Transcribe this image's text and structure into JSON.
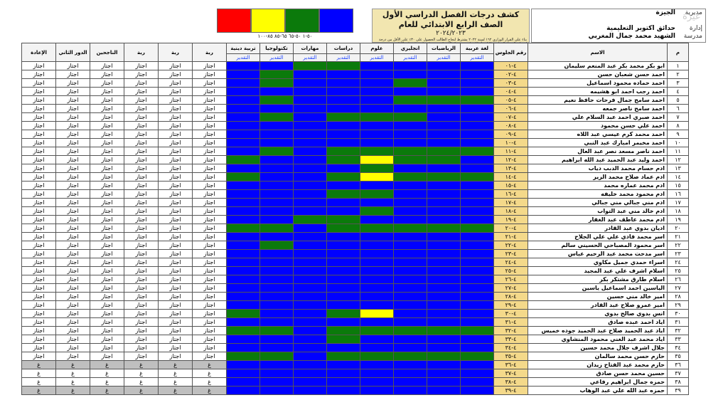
{
  "header": {
    "title_line1": "كشف درجات الفصل الدراسي الأول الصف الرابع الابتدائي للعام",
    "title_line2": "٢٠٢٤/٢٠٢٣",
    "note": "بناء على القرار الوزاري ١٦٢ لسنة ٢٠٢٢ يشترط لنجاح الطالب الحصول على ٣٠٪ على الأقل من درجة امتحان الفصل الدراسي الثاني أو كل مادة من مواد الامتحان وحصوله على ٣٠٪ على الأقل من مجموع درجات كل مادة من مواد الامتحان",
    "scale": "٥٠-١ ٥٠-٦٥ ٦٥-٨٥ ٨٥-١٠٠",
    "swatch_colors": [
      "#ff0000",
      "#ffff00",
      "#0b7a0b",
      "#0000ff"
    ],
    "school_rows": [
      {
        "label": "مديرية",
        "value": "الجيزة"
      },
      {
        "label": "",
        "value": ""
      },
      {
        "label": "إدارة",
        "value": "حدائق أكتوبر التعليمية"
      },
      {
        "label": "مدرسة",
        "value": "الشهيد محمد جمال المغربي"
      }
    ],
    "watermark": "غيرة"
  },
  "columns": {
    "num": "م",
    "name": "الاسم",
    "seat": "رقم الجلوس",
    "subjects": [
      "لغة عربية",
      "الرياضيات",
      "انجليزي",
      "علوم",
      "دراسات",
      "مهارات",
      "تكنولوجيا",
      "تربية دينية"
    ],
    "sub_label": "التقدير",
    "results": [
      "ربة",
      "ربة",
      "ربة",
      "الناجحين",
      "الدور الثاني",
      "الإعادة"
    ]
  },
  "students": [
    {
      "n": "١",
      "name": "ابو بكر محمد بكر عبد المنعم سليمان",
      "seat": "٤-٠١",
      "g": "BBBBGGBB",
      "r": "اجتاز"
    },
    {
      "n": "٢",
      "name": "احمد حسن شعبان حسن",
      "seat": "٤-٠٢",
      "g": "BBBBBBGB",
      "r": "اجتاز"
    },
    {
      "n": "٣",
      "name": "احمد حماده محمود اسماعيل",
      "seat": "٤-٠٣",
      "g": "BBGBBBGB",
      "r": "اجتاز"
    },
    {
      "n": "٤",
      "name": "احمد رجب احمد ابو هشيمه",
      "seat": "٤-٠٤",
      "g": "BBBBBBBB",
      "r": "اجتاز"
    },
    {
      "n": "٥",
      "name": "احمد سامح جمال فرحات حافظ نعيم",
      "seat": "٤-٠٥",
      "g": "GGGBBBGB",
      "r": "اجتاز"
    },
    {
      "n": "٦",
      "name": "احمد سامح ناصر جمعه",
      "seat": "٤-٠٦",
      "g": "BBBBBBBB",
      "r": "اجتاز"
    },
    {
      "n": "٧",
      "name": "احمد صبري احمد عبد السلام علي",
      "seat": "٤-٠٧",
      "g": "BBGGGBGB",
      "r": "اجتاز"
    },
    {
      "n": "٨",
      "name": "احمد علي حسن محمود",
      "seat": "٤-٠٨",
      "g": "BBBBBBBB",
      "r": "اجتاز"
    },
    {
      "n": "٩",
      "name": "احمد محمد كرم عيسي عبد اللاه",
      "seat": "٤-٠٩",
      "g": "BBBBBBBB",
      "r": "اجتاز"
    },
    {
      "n": "١٠",
      "name": "احمد مخيمر امبارك عبد النبي",
      "seat": "٤-١٠",
      "g": "BBBBBBBB",
      "r": "اجتاز"
    },
    {
      "n": "١١",
      "name": "احمد ناصر مسعد نصر عبد العال",
      "seat": "٤-١١",
      "g": "GGGGGBGB",
      "r": "اجتاز"
    },
    {
      "n": "١٢",
      "name": "احمد وليد عبد الحميد عبد الله ابراهيم",
      "seat": "٤-١٢",
      "g": "BGGYGBBG",
      "r": "اجتاز"
    },
    {
      "n": "١٣",
      "name": "ادم حسام محمد الدبب دياب",
      "seat": "٤-١٣",
      "g": "BBBGBBBB",
      "r": "اجتاز"
    },
    {
      "n": "١٤",
      "name": "ادم عماد صلاح محمد الزير",
      "seat": "٤-١٤",
      "g": "GGGYGBBG",
      "r": "اجتاز"
    },
    {
      "n": "١٥",
      "name": "ادم محمد عماره محمد",
      "seat": "٤-١٥",
      "g": "BBBBBBBB",
      "r": "اجتاز"
    },
    {
      "n": "١٦",
      "name": "ادم محمود محمد خليفه",
      "seat": "٤-١٦",
      "g": "BBBGGBBB",
      "r": "اجتاز"
    },
    {
      "n": "١٧",
      "name": "ادم مني جبالي مني جبالي",
      "seat": "٤-١٧",
      "g": "BBBBBBBB",
      "r": "اجتاز"
    },
    {
      "n": "١٨",
      "name": "ادم خالد مني عبد التواب",
      "seat": "٤-١٨",
      "g": "BBBGBBBB",
      "r": "اجتاز"
    },
    {
      "n": "١٩",
      "name": "ادم محمد عاطف عبد الغفار",
      "seat": "٤-١٩",
      "g": "BBBBGGBB",
      "r": "اجتاز"
    },
    {
      "n": "٢٠",
      "name": "اديان بدوي عبد القادر",
      "seat": "٤-٢٠",
      "g": "GGGGGBGG",
      "r": "اجتاز"
    },
    {
      "n": "٢١",
      "name": "اسر محمد فادي علي علي الجلاح",
      "seat": "٤-٢١",
      "g": "BBBBBBBB",
      "r": "اجتاز"
    },
    {
      "n": "٢٢",
      "name": "اسر محمود المصباحي الحسيني سالم",
      "seat": "٤-٢٢",
      "g": "BBBBBBGB",
      "r": "اجتاز"
    },
    {
      "n": "٢٣",
      "name": "اسر مدحت محمد عبد الرحيم عباس",
      "seat": "٤-٢٣",
      "g": "BBBBBBBB",
      "r": "اجتاز"
    },
    {
      "n": "٢٤",
      "name": "اسراء حمدي جميل مكاوي",
      "seat": "٤-٢٤",
      "g": "BBBBBBBB",
      "r": "اجتاز"
    },
    {
      "n": "٢٥",
      "name": "اسلام اشرف علي عبد المجيد",
      "seat": "٤-٢٥",
      "g": "BBBBBBBB",
      "r": "اجتاز"
    },
    {
      "n": "٢٦",
      "name": "اسلام طارق مشتكر بكر",
      "seat": "٤-٢٦",
      "g": "BBBBBBBB",
      "r": "اجتاز"
    },
    {
      "n": "٢٧",
      "name": "الياسين احمد اسماعيل ياسين",
      "seat": "٤-٢٧",
      "g": "BBBBBBBB",
      "r": "اجتاز"
    },
    {
      "n": "٢٨",
      "name": "امير خالد مني حسين",
      "seat": "٤-٢٨",
      "g": "BBBBBBBB",
      "r": "اجتاز"
    },
    {
      "n": "٢٩",
      "name": "امير عمرو صلاح عبد القادر",
      "seat": "٤-٢٩",
      "g": "BBBBBBBB",
      "r": "اجتاز"
    },
    {
      "n": "٣٠",
      "name": "انس بدوي صالح بدوي",
      "seat": "٤-٣٠",
      "g": "BBBYGBBG",
      "r": "اجتاز"
    },
    {
      "n": "٣١",
      "name": "اياد احمد عبده صادق",
      "seat": "٤-٣١",
      "g": "BBBBBBBB",
      "r": "اجتاز"
    },
    {
      "n": "٣٢",
      "name": "اياد عبد الحميد صلاح عبد الحميد جوده خميس",
      "seat": "٤-٣٢",
      "g": "GGGGGBGG",
      "r": "اجتاز"
    },
    {
      "n": "٣٣",
      "name": "اياد محمد عبد الغني محمود المنشاوي",
      "seat": "٤-٣٣",
      "g": "BBBBGBBB",
      "r": "اجتاز"
    },
    {
      "n": "٣٤",
      "name": "جلال اشرف جلال محمد حسين",
      "seat": "٤-٣٤",
      "g": "BBBBBBBB",
      "r": "اجتاز"
    },
    {
      "n": "٣٥",
      "name": "حازم حسن محمد سالمان",
      "seat": "٤-٣٥",
      "g": "GGGGGBGG",
      "r": "اجتاز"
    },
    {
      "n": "٣٦",
      "name": "حازم محمد عبد الفتاح زيدان",
      "seat": "٤-٣٦",
      "g": "BBBBBBBB",
      "r": "غ",
      "gray": true
    },
    {
      "n": "٣٧",
      "name": "حسين محمد حسن صادق",
      "seat": "٤-٣٧",
      "g": "BBBBBBBB",
      "r": "غ"
    },
    {
      "n": "٣٨",
      "name": "حمزه جمال ابراهيم رفاعي",
      "seat": "٤-٣٨",
      "g": "BBBBBBBB",
      "r": "غ"
    },
    {
      "n": "٣٩",
      "name": "حمزه عبد الله علي عبد الوهاب",
      "seat": "٤-٣٩",
      "g": "BBBBBBBB",
      "r": "غ",
      "gray": true
    }
  ]
}
